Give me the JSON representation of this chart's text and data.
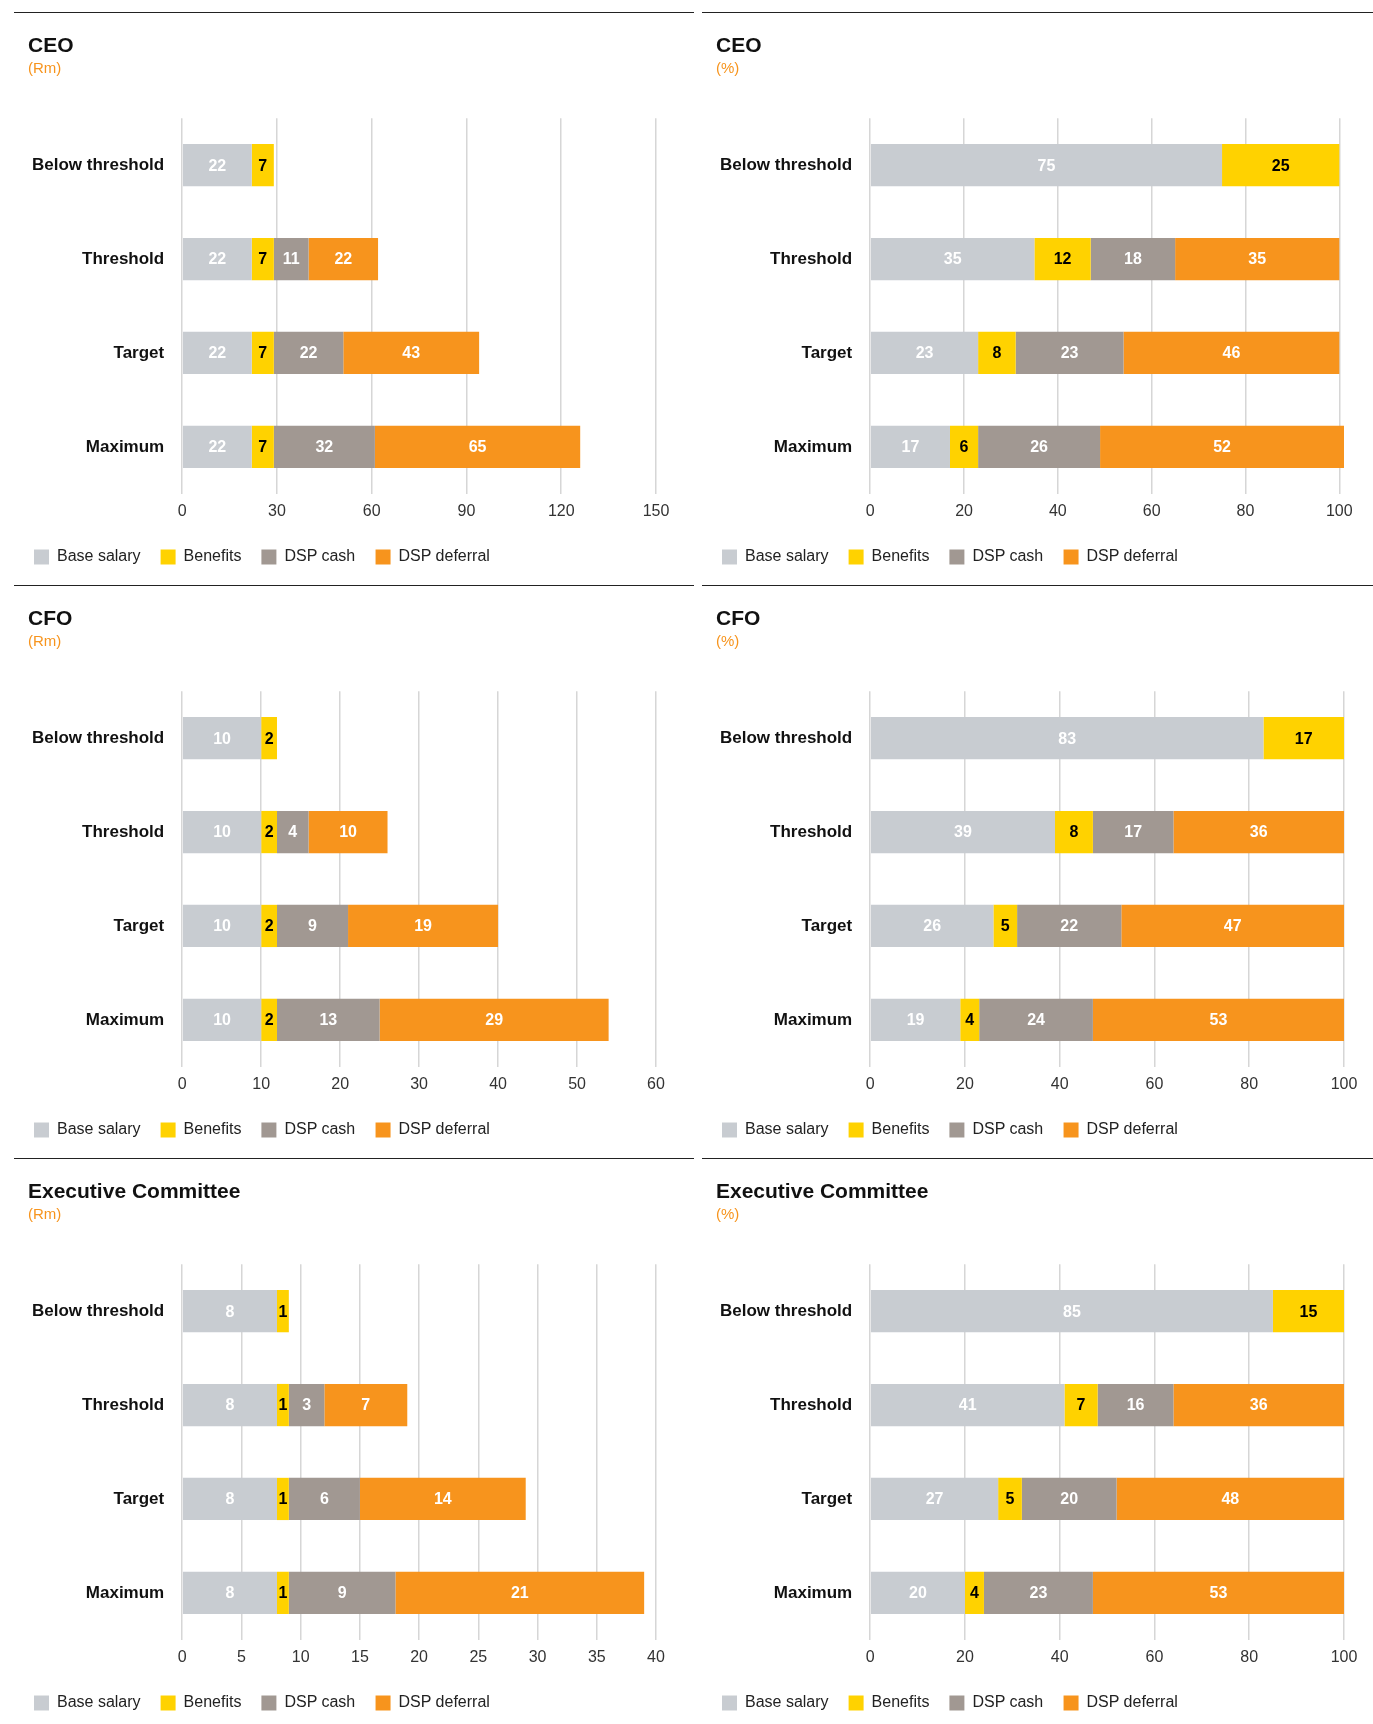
{
  "chart_data": [
    {
      "type": "bar",
      "title": "CEO",
      "subtitle": "(Rm)",
      "orientation": "horizontal",
      "stacked": true,
      "data_labels": true,
      "grid": "x",
      "legend": "bottom",
      "categories": [
        "Below threshold",
        "Threshold",
        "Target",
        "Maximum"
      ],
      "xlim": [
        0,
        150
      ],
      "xticks": [
        0,
        30,
        60,
        90,
        120,
        150
      ],
      "series": [
        {
          "name": "Base salary",
          "color": "#c8ccd1",
          "values": [
            22,
            22,
            22,
            22
          ]
        },
        {
          "name": "Benefits",
          "color": "#ffd200",
          "values": [
            7,
            7,
            7,
            7
          ]
        },
        {
          "name": "DSP cash",
          "color": "#a19892",
          "values": [
            null,
            11,
            22,
            32
          ]
        },
        {
          "name": "DSP deferral",
          "color": "#f7941d",
          "values": [
            null,
            22,
            43,
            65
          ]
        }
      ]
    },
    {
      "type": "bar",
      "title": "CEO",
      "subtitle": "(%)",
      "orientation": "horizontal",
      "stacked": true,
      "data_labels": true,
      "grid": "x",
      "legend": "bottom",
      "categories": [
        "Below threshold",
        "Threshold",
        "Target",
        "Maximum"
      ],
      "xlim": [
        0,
        101
      ],
      "xticks": [
        0,
        20,
        40,
        60,
        80,
        100
      ],
      "series": [
        {
          "name": "Base salary",
          "color": "#c8ccd1",
          "values": [
            75,
            35,
            23,
            17
          ]
        },
        {
          "name": "Benefits",
          "color": "#ffd200",
          "values": [
            25,
            12,
            8,
            6
          ]
        },
        {
          "name": "DSP cash",
          "color": "#a19892",
          "values": [
            null,
            18,
            23,
            26
          ]
        },
        {
          "name": "DSP deferral",
          "color": "#f7941d",
          "values": [
            null,
            35,
            46,
            52
          ]
        }
      ]
    },
    {
      "type": "bar",
      "title": "CFO",
      "subtitle": "(Rm)",
      "orientation": "horizontal",
      "stacked": true,
      "data_labels": true,
      "grid": "x",
      "legend": "bottom",
      "categories": [
        "Below threshold",
        "Threshold",
        "Target",
        "Maximum"
      ],
      "xlim": [
        0,
        60
      ],
      "xticks": [
        0,
        10,
        20,
        30,
        40,
        50,
        60
      ],
      "series": [
        {
          "name": "Base salary",
          "color": "#c8ccd1",
          "values": [
            10,
            10,
            10,
            10
          ]
        },
        {
          "name": "Benefits",
          "color": "#ffd200",
          "values": [
            2,
            2,
            2,
            2
          ]
        },
        {
          "name": "DSP cash",
          "color": "#a19892",
          "values": [
            null,
            4,
            9,
            13
          ]
        },
        {
          "name": "DSP deferral",
          "color": "#f7941d",
          "values": [
            null,
            10,
            19,
            29
          ]
        }
      ]
    },
    {
      "type": "bar",
      "title": "CFO",
      "subtitle": "(%)",
      "orientation": "horizontal",
      "stacked": true,
      "data_labels": true,
      "grid": "x",
      "legend": "bottom",
      "categories": [
        "Below threshold",
        "Threshold",
        "Target",
        "Maximum"
      ],
      "xlim": [
        0,
        100
      ],
      "xticks": [
        0,
        20,
        40,
        60,
        80,
        100
      ],
      "series": [
        {
          "name": "Base salary",
          "color": "#c8ccd1",
          "values": [
            83,
            39,
            26,
            19
          ]
        },
        {
          "name": "Benefits",
          "color": "#ffd200",
          "values": [
            17,
            8,
            5,
            4
          ]
        },
        {
          "name": "DSP cash",
          "color": "#a19892",
          "values": [
            null,
            17,
            22,
            24
          ]
        },
        {
          "name": "DSP deferral",
          "color": "#f7941d",
          "values": [
            null,
            36,
            47,
            53
          ]
        }
      ]
    },
    {
      "type": "bar",
      "title": "Executive Committee",
      "subtitle": "(Rm)",
      "orientation": "horizontal",
      "stacked": true,
      "data_labels": true,
      "grid": "x",
      "legend": "bottom",
      "categories": [
        "Below threshold",
        "Threshold",
        "Target",
        "Maximum"
      ],
      "xlim": [
        0,
        40
      ],
      "xticks": [
        0,
        5,
        10,
        15,
        20,
        25,
        30,
        35,
        40
      ],
      "series": [
        {
          "name": "Base salary",
          "color": "#c8ccd1",
          "values": [
            8,
            8,
            8,
            8
          ]
        },
        {
          "name": "Benefits",
          "color": "#ffd200",
          "values": [
            1,
            1,
            1,
            1
          ]
        },
        {
          "name": "DSP cash",
          "color": "#a19892",
          "values": [
            null,
            3,
            6,
            9
          ]
        },
        {
          "name": "DSP deferral",
          "color": "#f7941d",
          "values": [
            null,
            7,
            14,
            21
          ]
        }
      ]
    },
    {
      "type": "bar",
      "title": "Executive Committee",
      "subtitle": "(%)",
      "orientation": "horizontal",
      "stacked": true,
      "data_labels": true,
      "grid": "x",
      "legend": "bottom",
      "categories": [
        "Below threshold",
        "Threshold",
        "Target",
        "Maximum"
      ],
      "xlim": [
        0,
        100
      ],
      "xticks": [
        0,
        20,
        40,
        60,
        80,
        100
      ],
      "series": [
        {
          "name": "Base salary",
          "color": "#c8ccd1",
          "values": [
            85,
            41,
            27,
            20
          ]
        },
        {
          "name": "Benefits",
          "color": "#ffd200",
          "values": [
            15,
            7,
            5,
            4
          ]
        },
        {
          "name": "DSP cash",
          "color": "#a19892",
          "values": [
            null,
            16,
            20,
            23
          ]
        },
        {
          "name": "DSP deferral",
          "color": "#f7941d",
          "values": [
            null,
            36,
            48,
            53
          ]
        }
      ]
    }
  ]
}
